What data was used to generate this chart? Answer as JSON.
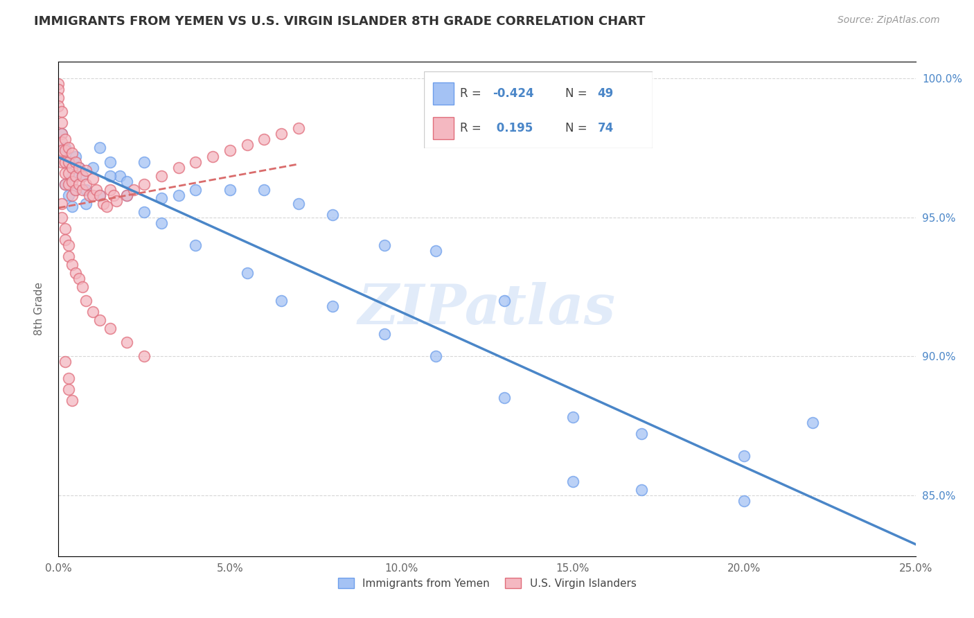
{
  "title": "IMMIGRANTS FROM YEMEN VS U.S. VIRGIN ISLANDER 8TH GRADE CORRELATION CHART",
  "source": "Source: ZipAtlas.com",
  "ylabel": "8th Grade",
  "xlim": [
    0.0,
    0.25
  ],
  "ylim": [
    0.828,
    1.006
  ],
  "xticks": [
    0.0,
    0.05,
    0.1,
    0.15,
    0.2,
    0.25
  ],
  "xtick_labels": [
    "0.0%",
    "5.0%",
    "10.0%",
    "15.0%",
    "20.0%",
    "25.0%"
  ],
  "yticks": [
    0.85,
    0.9,
    0.95,
    1.0
  ],
  "ytick_labels": [
    "85.0%",
    "90.0%",
    "95.0%",
    "100.0%"
  ],
  "blue_color": "#a4c2f4",
  "pink_color": "#f4b8c1",
  "blue_edge_color": "#6d9eeb",
  "pink_edge_color": "#e06c7a",
  "blue_line_color": "#4a86c8",
  "pink_line_color": "#d96b6b",
  "text_color_blue": "#4a86c8",
  "watermark": "ZIPatlas",
  "blue_dots_x": [
    0.001,
    0.002,
    0.003,
    0.004,
    0.005,
    0.006,
    0.007,
    0.008,
    0.01,
    0.012,
    0.015,
    0.018,
    0.02,
    0.025,
    0.03,
    0.035,
    0.04,
    0.05,
    0.06,
    0.07,
    0.08,
    0.095,
    0.11,
    0.13,
    0.15,
    0.17,
    0.2,
    0.22,
    0.002,
    0.003,
    0.004,
    0.005,
    0.008,
    0.012,
    0.015,
    0.02,
    0.025,
    0.03,
    0.04,
    0.055,
    0.065,
    0.08,
    0.095,
    0.11,
    0.13,
    0.15,
    0.17,
    0.2
  ],
  "blue_dots_y": [
    0.98,
    0.975,
    0.97,
    0.965,
    0.972,
    0.968,
    0.965,
    0.96,
    0.968,
    0.975,
    0.97,
    0.965,
    0.963,
    0.97,
    0.957,
    0.958,
    0.96,
    0.96,
    0.96,
    0.955,
    0.951,
    0.94,
    0.938,
    0.92,
    0.878,
    0.872,
    0.864,
    0.876,
    0.962,
    0.958,
    0.954,
    0.96,
    0.955,
    0.958,
    0.965,
    0.958,
    0.952,
    0.948,
    0.94,
    0.93,
    0.92,
    0.918,
    0.908,
    0.9,
    0.885,
    0.855,
    0.852,
    0.848
  ],
  "pink_dots_x": [
    0.0,
    0.0,
    0.0,
    0.0,
    0.001,
    0.001,
    0.001,
    0.001,
    0.001,
    0.001,
    0.002,
    0.002,
    0.002,
    0.002,
    0.002,
    0.003,
    0.003,
    0.003,
    0.003,
    0.004,
    0.004,
    0.004,
    0.004,
    0.005,
    0.005,
    0.005,
    0.006,
    0.006,
    0.007,
    0.007,
    0.008,
    0.008,
    0.009,
    0.01,
    0.01,
    0.011,
    0.012,
    0.013,
    0.014,
    0.015,
    0.016,
    0.017,
    0.02,
    0.022,
    0.025,
    0.03,
    0.035,
    0.04,
    0.045,
    0.05,
    0.055,
    0.06,
    0.065,
    0.07,
    0.001,
    0.001,
    0.002,
    0.002,
    0.003,
    0.003,
    0.004,
    0.005,
    0.006,
    0.007,
    0.008,
    0.01,
    0.012,
    0.015,
    0.02,
    0.025,
    0.002,
    0.003,
    0.003,
    0.004
  ],
  "pink_dots_y": [
    0.998,
    0.996,
    0.993,
    0.99,
    0.988,
    0.984,
    0.98,
    0.977,
    0.974,
    0.97,
    0.978,
    0.974,
    0.97,
    0.966,
    0.962,
    0.975,
    0.97,
    0.966,
    0.962,
    0.973,
    0.968,
    0.963,
    0.958,
    0.97,
    0.965,
    0.96,
    0.968,
    0.962,
    0.965,
    0.96,
    0.967,
    0.962,
    0.958,
    0.964,
    0.958,
    0.96,
    0.958,
    0.955,
    0.954,
    0.96,
    0.958,
    0.956,
    0.958,
    0.96,
    0.962,
    0.965,
    0.968,
    0.97,
    0.972,
    0.974,
    0.976,
    0.978,
    0.98,
    0.982,
    0.955,
    0.95,
    0.946,
    0.942,
    0.94,
    0.936,
    0.933,
    0.93,
    0.928,
    0.925,
    0.92,
    0.916,
    0.913,
    0.91,
    0.905,
    0.9,
    0.898,
    0.892,
    0.888,
    0.884
  ]
}
